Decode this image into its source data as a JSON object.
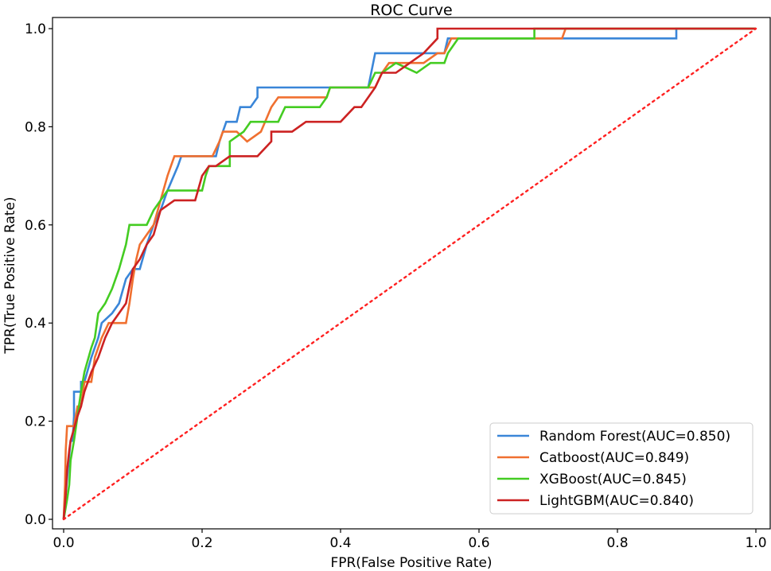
{
  "chart_data": {
    "type": "line",
    "title": "ROC Curve",
    "xlabel": "FPR(False Positive Rate)",
    "ylabel": "TPR(True Positive Rate)",
    "xlim": [
      0,
      1
    ],
    "ylim": [
      0,
      1
    ],
    "xticks": [
      "0.0",
      "0.2",
      "0.4",
      "0.6",
      "0.8",
      "1.0"
    ],
    "yticks": [
      "0.0",
      "0.2",
      "0.4",
      "0.6",
      "0.8",
      "1.0"
    ],
    "legend_position": "lower-right",
    "baseline": {
      "name": "chance",
      "color": "#ff2020",
      "style": "dotted",
      "points": [
        [
          0,
          0
        ],
        [
          1,
          1
        ]
      ]
    },
    "series": [
      {
        "name": "Random Forest",
        "label": "Random Forest(AUC=0.850)",
        "auc": 0.85,
        "color": "#3a86d8",
        "points": [
          [
            0,
            0
          ],
          [
            0.003,
            0.05
          ],
          [
            0.006,
            0.1
          ],
          [
            0.01,
            0.16
          ],
          [
            0.013,
            0.16
          ],
          [
            0.015,
            0.21
          ],
          [
            0.015,
            0.26
          ],
          [
            0.025,
            0.26
          ],
          [
            0.025,
            0.28
          ],
          [
            0.03,
            0.28
          ],
          [
            0.04,
            0.33
          ],
          [
            0.05,
            0.37
          ],
          [
            0.055,
            0.4
          ],
          [
            0.07,
            0.42
          ],
          [
            0.08,
            0.44
          ],
          [
            0.09,
            0.49
          ],
          [
            0.1,
            0.51
          ],
          [
            0.11,
            0.51
          ],
          [
            0.12,
            0.56
          ],
          [
            0.125,
            0.58
          ],
          [
            0.13,
            0.6
          ],
          [
            0.14,
            0.63
          ],
          [
            0.15,
            0.67
          ],
          [
            0.165,
            0.72
          ],
          [
            0.17,
            0.74
          ],
          [
            0.22,
            0.74
          ],
          [
            0.225,
            0.77
          ],
          [
            0.23,
            0.79
          ],
          [
            0.235,
            0.81
          ],
          [
            0.25,
            0.81
          ],
          [
            0.255,
            0.84
          ],
          [
            0.27,
            0.84
          ],
          [
            0.28,
            0.86
          ],
          [
            0.28,
            0.88
          ],
          [
            0.36,
            0.88
          ],
          [
            0.44,
            0.88
          ],
          [
            0.45,
            0.95
          ],
          [
            0.55,
            0.95
          ],
          [
            0.555,
            0.98
          ],
          [
            0.885,
            0.98
          ],
          [
            0.885,
            1.0
          ],
          [
            1,
            1
          ]
        ]
      },
      {
        "name": "Catboost",
        "label": "Catboost(AUC=0.849)",
        "auc": 0.849,
        "color": "#f07030",
        "points": [
          [
            0,
            0
          ],
          [
            0.002,
            0.07
          ],
          [
            0.003,
            0.14
          ],
          [
            0.005,
            0.19
          ],
          [
            0.015,
            0.19
          ],
          [
            0.02,
            0.23
          ],
          [
            0.025,
            0.23
          ],
          [
            0.03,
            0.28
          ],
          [
            0.04,
            0.28
          ],
          [
            0.045,
            0.33
          ],
          [
            0.055,
            0.37
          ],
          [
            0.065,
            0.4
          ],
          [
            0.09,
            0.4
          ],
          [
            0.095,
            0.44
          ],
          [
            0.1,
            0.49
          ],
          [
            0.105,
            0.53
          ],
          [
            0.11,
            0.56
          ],
          [
            0.12,
            0.58
          ],
          [
            0.13,
            0.6
          ],
          [
            0.14,
            0.65
          ],
          [
            0.15,
            0.7
          ],
          [
            0.155,
            0.72
          ],
          [
            0.16,
            0.74
          ],
          [
            0.215,
            0.74
          ],
          [
            0.225,
            0.77
          ],
          [
            0.23,
            0.79
          ],
          [
            0.25,
            0.79
          ],
          [
            0.265,
            0.77
          ],
          [
            0.285,
            0.79
          ],
          [
            0.3,
            0.84
          ],
          [
            0.31,
            0.86
          ],
          [
            0.38,
            0.86
          ],
          [
            0.385,
            0.88
          ],
          [
            0.45,
            0.88
          ],
          [
            0.46,
            0.91
          ],
          [
            0.47,
            0.93
          ],
          [
            0.52,
            0.93
          ],
          [
            0.54,
            0.95
          ],
          [
            0.55,
            0.95
          ],
          [
            0.56,
            0.98
          ],
          [
            0.72,
            0.98
          ],
          [
            0.725,
            1.0
          ],
          [
            1,
            1
          ]
        ]
      },
      {
        "name": "XGBoost",
        "label": "XGBoost(AUC=0.845)",
        "auc": 0.845,
        "color": "#44cc22",
        "points": [
          [
            0,
            0
          ],
          [
            0.005,
            0.04
          ],
          [
            0.008,
            0.07
          ],
          [
            0.01,
            0.12
          ],
          [
            0.015,
            0.16
          ],
          [
            0.02,
            0.21
          ],
          [
            0.025,
            0.26
          ],
          [
            0.03,
            0.3
          ],
          [
            0.04,
            0.35
          ],
          [
            0.045,
            0.37
          ],
          [
            0.05,
            0.42
          ],
          [
            0.06,
            0.44
          ],
          [
            0.07,
            0.47
          ],
          [
            0.08,
            0.51
          ],
          [
            0.09,
            0.56
          ],
          [
            0.095,
            0.6
          ],
          [
            0.12,
            0.6
          ],
          [
            0.13,
            0.63
          ],
          [
            0.14,
            0.65
          ],
          [
            0.15,
            0.67
          ],
          [
            0.2,
            0.67
          ],
          [
            0.205,
            0.7
          ],
          [
            0.21,
            0.72
          ],
          [
            0.24,
            0.72
          ],
          [
            0.24,
            0.77
          ],
          [
            0.26,
            0.79
          ],
          [
            0.27,
            0.81
          ],
          [
            0.31,
            0.81
          ],
          [
            0.32,
            0.84
          ],
          [
            0.37,
            0.84
          ],
          [
            0.38,
            0.86
          ],
          [
            0.385,
            0.88
          ],
          [
            0.41,
            0.88
          ],
          [
            0.43,
            0.88
          ],
          [
            0.44,
            0.88
          ],
          [
            0.45,
            0.91
          ],
          [
            0.46,
            0.91
          ],
          [
            0.48,
            0.93
          ],
          [
            0.51,
            0.91
          ],
          [
            0.53,
            0.93
          ],
          [
            0.55,
            0.93
          ],
          [
            0.555,
            0.95
          ],
          [
            0.57,
            0.98
          ],
          [
            0.68,
            0.98
          ],
          [
            0.68,
            1.0
          ],
          [
            1,
            1
          ]
        ]
      },
      {
        "name": "LightGBM",
        "label": "LightGBM(AUC=0.840)",
        "auc": 0.84,
        "color": "#cc2222",
        "points": [
          [
            0,
            0
          ],
          [
            0.003,
            0.05
          ],
          [
            0.005,
            0.1
          ],
          [
            0.008,
            0.14
          ],
          [
            0.01,
            0.16
          ],
          [
            0.02,
            0.21
          ],
          [
            0.025,
            0.23
          ],
          [
            0.03,
            0.26
          ],
          [
            0.04,
            0.3
          ],
          [
            0.05,
            0.33
          ],
          [
            0.06,
            0.37
          ],
          [
            0.07,
            0.4
          ],
          [
            0.08,
            0.42
          ],
          [
            0.09,
            0.44
          ],
          [
            0.1,
            0.51
          ],
          [
            0.11,
            0.53
          ],
          [
            0.12,
            0.56
          ],
          [
            0.13,
            0.58
          ],
          [
            0.14,
            0.63
          ],
          [
            0.16,
            0.65
          ],
          [
            0.19,
            0.65
          ],
          [
            0.2,
            0.7
          ],
          [
            0.21,
            0.72
          ],
          [
            0.22,
            0.72
          ],
          [
            0.24,
            0.74
          ],
          [
            0.28,
            0.74
          ],
          [
            0.3,
            0.77
          ],
          [
            0.3,
            0.79
          ],
          [
            0.33,
            0.79
          ],
          [
            0.35,
            0.81
          ],
          [
            0.37,
            0.81
          ],
          [
            0.38,
            0.81
          ],
          [
            0.4,
            0.81
          ],
          [
            0.42,
            0.84
          ],
          [
            0.43,
            0.84
          ],
          [
            0.44,
            0.86
          ],
          [
            0.45,
            0.88
          ],
          [
            0.46,
            0.91
          ],
          [
            0.48,
            0.91
          ],
          [
            0.5,
            0.93
          ],
          [
            0.52,
            0.95
          ],
          [
            0.54,
            0.98
          ],
          [
            0.54,
            1.0
          ],
          [
            1,
            1
          ]
        ]
      }
    ]
  }
}
